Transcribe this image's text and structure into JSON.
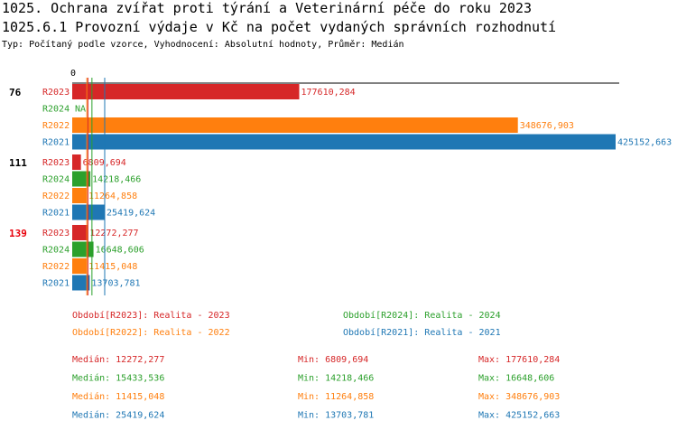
{
  "header": {
    "title": "1025. Ochrana zvířat proti týrání a Veterinární péče do roku 2023",
    "subtitle": "1025.6.1 Provozní výdaje v Kč na počet vydaných správních rozhodnutí",
    "type_line": "Typ: Počítaný podle vzorce, Vyhodnocení: Absolutní hodnoty, Průměr: Medián"
  },
  "colors": {
    "R2023": "#d62728",
    "R2024": "#2ca02c",
    "R2022": "#ff7f0e",
    "R2021": "#1f77b4",
    "highlight": "#e8000b",
    "text": "#000000"
  },
  "chart_data": {
    "type": "bar",
    "orientation": "horizontal",
    "axis_zero_label": "0",
    "xlim": [
      0,
      425152.663
    ],
    "series_order": [
      "R2023",
      "R2024",
      "R2022",
      "R2021"
    ],
    "groups": [
      {
        "label": "76",
        "highlight": false,
        "bars": [
          {
            "series": "R2023",
            "value": 177610.284,
            "label": "177610,284"
          },
          {
            "series": "R2024",
            "value": null,
            "label": "NA"
          },
          {
            "series": "R2022",
            "value": 348676.903,
            "label": "348676,903"
          },
          {
            "series": "R2021",
            "value": 425152.663,
            "label": "425152,663"
          }
        ]
      },
      {
        "label": "111",
        "highlight": false,
        "bars": [
          {
            "series": "R2023",
            "value": 6809.694,
            "label": "6809,694"
          },
          {
            "series": "R2024",
            "value": 14218.466,
            "label": "14218,466"
          },
          {
            "series": "R2022",
            "value": 11264.858,
            "label": "11264,858"
          },
          {
            "series": "R2021",
            "value": 25419.624,
            "label": "25419,624"
          }
        ]
      },
      {
        "label": "139",
        "highlight": true,
        "bars": [
          {
            "series": "R2023",
            "value": 12272.277,
            "label": "12272,277"
          },
          {
            "series": "R2024",
            "value": 16648.606,
            "label": "16648,606"
          },
          {
            "series": "R2022",
            "value": 11415.048,
            "label": "11415,048"
          },
          {
            "series": "R2021",
            "value": 13703.781,
            "label": "13703,781"
          }
        ]
      }
    ],
    "median_lines": [
      {
        "series": "R2023",
        "value": 12272.277
      },
      {
        "series": "R2024",
        "value": 15433.536
      },
      {
        "series": "R2022",
        "value": 11415.048
      },
      {
        "series": "R2021",
        "value": 25419.624
      }
    ],
    "legend": [
      {
        "series": "R2023",
        "text": "Období[R2023]: Realita - 2023"
      },
      {
        "series": "R2024",
        "text": "Období[R2024]: Realita - 2024"
      },
      {
        "series": "R2022",
        "text": "Období[R2022]: Realita - 2022"
      },
      {
        "series": "R2021",
        "text": "Období[R2021]: Realita - 2021"
      }
    ],
    "stats": [
      {
        "series": "R2023",
        "median": "Medián: 12272,277",
        "min": "Min: 6809,694",
        "max": "Max: 177610,284"
      },
      {
        "series": "R2024",
        "median": "Medián: 15433,536",
        "min": "Min: 14218,466",
        "max": "Max: 16648,606"
      },
      {
        "series": "R2022",
        "median": "Medián: 11415,048",
        "min": "Min: 11264,858",
        "max": "Max: 348676,903"
      },
      {
        "series": "R2021",
        "median": "Medián: 25419,624",
        "min": "Min: 13703,781",
        "max": "Max: 425152,663"
      }
    ]
  }
}
